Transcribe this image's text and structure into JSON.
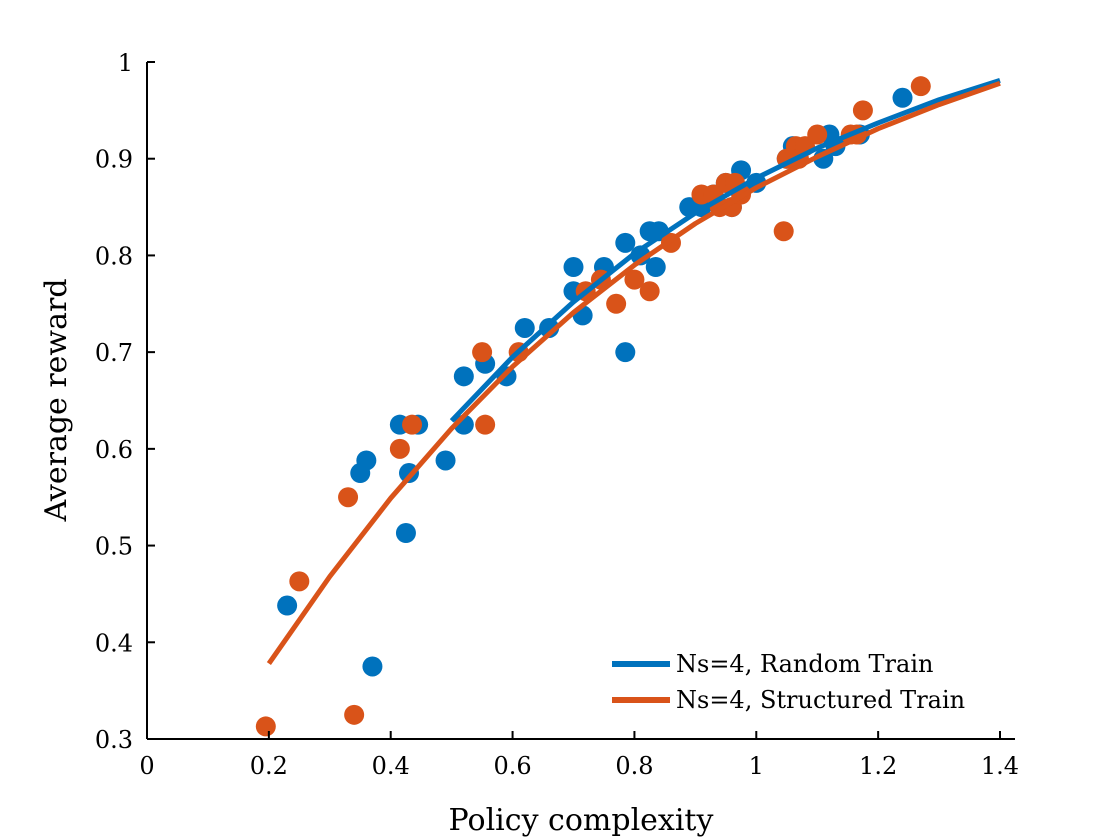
{
  "chart_data": {
    "type": "scatter",
    "title": "",
    "xlabel": "Policy complexity",
    "ylabel": "Average reward",
    "xlim": [
      0,
      1.4
    ],
    "ylim": [
      0.3,
      1.0
    ],
    "xticks": [
      0,
      0.2,
      0.4,
      0.6,
      0.8,
      1,
      1.2,
      1.4
    ],
    "xtick_labels": [
      "0",
      "0.2",
      "0.4",
      "0.6",
      "0.8",
      "1",
      "1.2",
      "1.4"
    ],
    "yticks": [
      0.3,
      0.4,
      0.5,
      0.6,
      0.7,
      0.8,
      0.9,
      1.0
    ],
    "ytick_labels": [
      "0.3",
      "0.4",
      "0.5",
      "0.6",
      "0.7",
      "0.8",
      "0.9",
      "1"
    ],
    "grid": false,
    "legend_position": "bottom-right",
    "series": [
      {
        "name": "Ns=4, Random Train",
        "color": "#0072BD",
        "points": [
          [
            0.23,
            0.438
          ],
          [
            0.35,
            0.575
          ],
          [
            0.36,
            0.588
          ],
          [
            0.37,
            0.375
          ],
          [
            0.415,
            0.625
          ],
          [
            0.425,
            0.513
          ],
          [
            0.43,
            0.575
          ],
          [
            0.445,
            0.625
          ],
          [
            0.49,
            0.588
          ],
          [
            0.52,
            0.625
          ],
          [
            0.52,
            0.675
          ],
          [
            0.555,
            0.688
          ],
          [
            0.59,
            0.675
          ],
          [
            0.62,
            0.725
          ],
          [
            0.66,
            0.725
          ],
          [
            0.7,
            0.788
          ],
          [
            0.7,
            0.763
          ],
          [
            0.715,
            0.738
          ],
          [
            0.75,
            0.788
          ],
          [
            0.785,
            0.813
          ],
          [
            0.785,
            0.7
          ],
          [
            0.81,
            0.8
          ],
          [
            0.825,
            0.825
          ],
          [
            0.835,
            0.788
          ],
          [
            0.84,
            0.825
          ],
          [
            0.89,
            0.85
          ],
          [
            0.91,
            0.85
          ],
          [
            0.93,
            0.863
          ],
          [
            0.95,
            0.875
          ],
          [
            0.96,
            0.85
          ],
          [
            0.975,
            0.888
          ],
          [
            1.0,
            0.875
          ],
          [
            1.05,
            0.9
          ],
          [
            1.06,
            0.913
          ],
          [
            1.11,
            0.9
          ],
          [
            1.12,
            0.925
          ],
          [
            1.13,
            0.913
          ],
          [
            1.17,
            0.925
          ],
          [
            1.24,
            0.963
          ]
        ],
        "fit": [
          [
            0.5,
            0.629
          ],
          [
            0.6,
            0.695
          ],
          [
            0.7,
            0.752
          ],
          [
            0.8,
            0.802
          ],
          [
            0.9,
            0.844
          ],
          [
            1.0,
            0.88
          ],
          [
            1.1,
            0.911
          ],
          [
            1.2,
            0.937
          ],
          [
            1.3,
            0.961
          ],
          [
            1.4,
            0.981
          ]
        ]
      },
      {
        "name": "Ns=4, Structured Train",
        "color": "#D95319",
        "points": [
          [
            0.195,
            0.313
          ],
          [
            0.25,
            0.463
          ],
          [
            0.33,
            0.55
          ],
          [
            0.34,
            0.325
          ],
          [
            0.415,
            0.6
          ],
          [
            0.435,
            0.625
          ],
          [
            0.55,
            0.7
          ],
          [
            0.555,
            0.625
          ],
          [
            0.61,
            0.7
          ],
          [
            0.72,
            0.763
          ],
          [
            0.745,
            0.775
          ],
          [
            0.77,
            0.75
          ],
          [
            0.8,
            0.775
          ],
          [
            0.825,
            0.763
          ],
          [
            0.86,
            0.813
          ],
          [
            0.91,
            0.863
          ],
          [
            0.93,
            0.863
          ],
          [
            0.94,
            0.85
          ],
          [
            0.95,
            0.875
          ],
          [
            0.96,
            0.85
          ],
          [
            0.965,
            0.875
          ],
          [
            0.975,
            0.863
          ],
          [
            1.045,
            0.825
          ],
          [
            1.05,
            0.9
          ],
          [
            1.065,
            0.913
          ],
          [
            1.07,
            0.9
          ],
          [
            1.08,
            0.913
          ],
          [
            1.1,
            0.925
          ],
          [
            1.155,
            0.925
          ],
          [
            1.165,
            0.925
          ],
          [
            1.175,
            0.95
          ],
          [
            1.27,
            0.975
          ]
        ],
        "fit": [
          [
            0.2,
            0.378
          ],
          [
            0.3,
            0.468
          ],
          [
            0.4,
            0.549
          ],
          [
            0.5,
            0.621
          ],
          [
            0.6,
            0.685
          ],
          [
            0.7,
            0.741
          ],
          [
            0.8,
            0.79
          ],
          [
            0.9,
            0.833
          ],
          [
            1.0,
            0.87
          ],
          [
            1.1,
            0.902
          ],
          [
            1.2,
            0.931
          ],
          [
            1.3,
            0.956
          ],
          [
            1.4,
            0.978
          ]
        ]
      }
    ]
  }
}
